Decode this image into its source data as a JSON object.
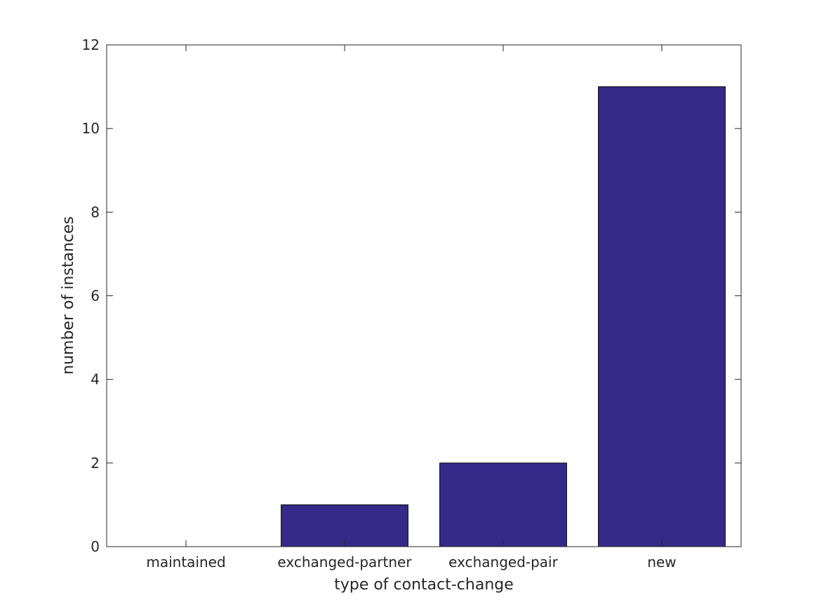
{
  "chart_data": {
    "type": "bar",
    "title": "",
    "categories": [
      "maintained",
      "exchanged-partner",
      "exchanged-pair",
      "new"
    ],
    "values": [
      0,
      1,
      2,
      11
    ],
    "xlabel": "type of contact-change",
    "ylabel": "number of instances",
    "ylim": [
      0,
      12
    ],
    "yticks": [
      0,
      2,
      4,
      6,
      8,
      10,
      12
    ],
    "grid": false,
    "legend": "none",
    "bar_color": "#352a87",
    "bar_edge_color": "#000000",
    "axis_color": "#262626"
  }
}
